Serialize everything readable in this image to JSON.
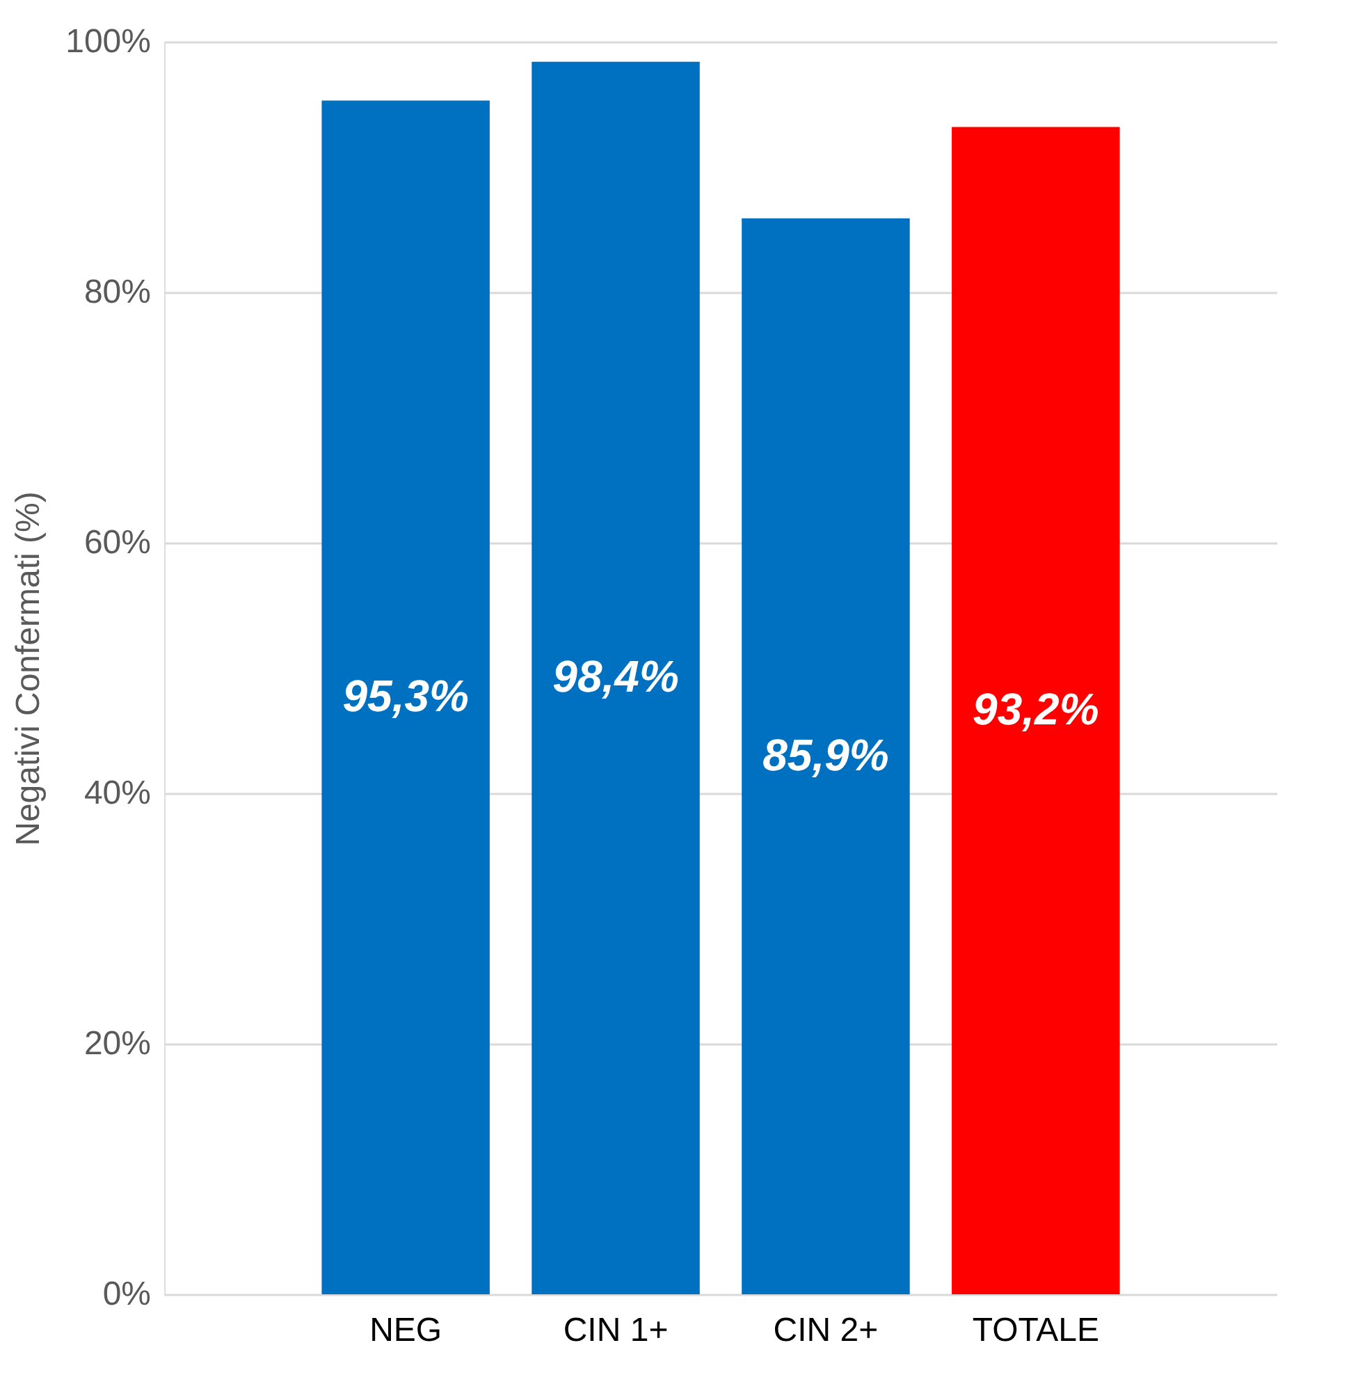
{
  "chart_data": {
    "type": "bar",
    "ylabel": "Negativi Confermati (%)",
    "categories": [
      "NEG",
      "CIN 1+",
      "CIN 2+",
      "TOTALE"
    ],
    "values": [
      95.3,
      98.4,
      85.9,
      93.2
    ],
    "colors": [
      "#0070c0",
      "#0070c0",
      "#0070c0",
      "#ff0000"
    ],
    "value_labels": [
      "95,3%",
      "98,4%",
      "85,9%",
      "93,2%"
    ],
    "ylim": [
      0,
      100
    ],
    "yticks": [
      {
        "value": 0,
        "label": "0%"
      },
      {
        "value": 20,
        "label": "20%"
      },
      {
        "value": 40,
        "label": "40%"
      },
      {
        "value": 60,
        "label": "60%"
      },
      {
        "value": 80,
        "label": "80%"
      },
      {
        "value": 100,
        "label": "100%"
      }
    ],
    "grid": "y"
  }
}
